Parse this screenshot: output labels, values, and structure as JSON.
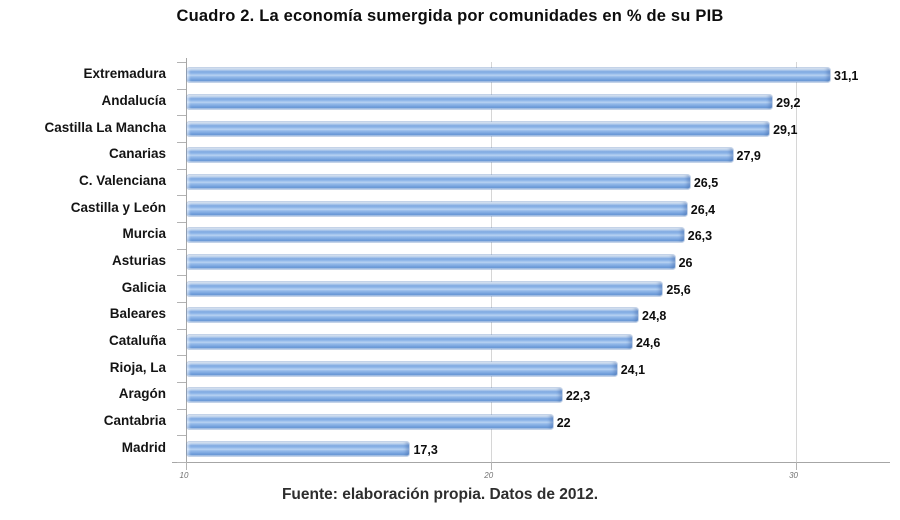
{
  "title": "Cuadro 2. La economía sumergida por comunidades en % de su PIB",
  "footer": "Fuente: elaboración propia. Datos de 2012.",
  "chart_data": {
    "type": "bar",
    "orientation": "horizontal",
    "title": "Cuadro 2. La economía sumergida por comunidades en % de su PIB",
    "xlabel": "",
    "ylabel": "",
    "categories": [
      "Extremadura",
      "Andalucía",
      "Castilla La Mancha",
      "Canarias",
      "C. Valenciana",
      "Castilla y León",
      "Murcia",
      "Asturias",
      "Galicia",
      "Baleares",
      "Cataluña",
      "Rioja, La",
      "Aragón",
      "Cantabria",
      "Madrid"
    ],
    "values": [
      31.1,
      29.2,
      29.1,
      27.9,
      26.5,
      26.4,
      26.3,
      26,
      25.6,
      24.8,
      24.6,
      24.1,
      22.3,
      22,
      17.3
    ],
    "value_labels": [
      "31,1",
      "29,2",
      "29,1",
      "27,9",
      "26,5",
      "26,4",
      "26,3",
      "26",
      "25,6",
      "24,8",
      "24,6",
      "24,1",
      "22,3",
      "22",
      "17,3"
    ],
    "xlim": [
      10,
      33.1
    ],
    "xticks": [
      10,
      20,
      30
    ],
    "xtick_labels": [
      "10",
      "20",
      "30"
    ],
    "grid": true,
    "legend": false,
    "bar_color": "#7FA9E1",
    "gridline_color": "#d6d6d6",
    "axis_color": "#a6a6a6",
    "source_note": "Fuente: elaboración propia. Datos de 2012."
  }
}
